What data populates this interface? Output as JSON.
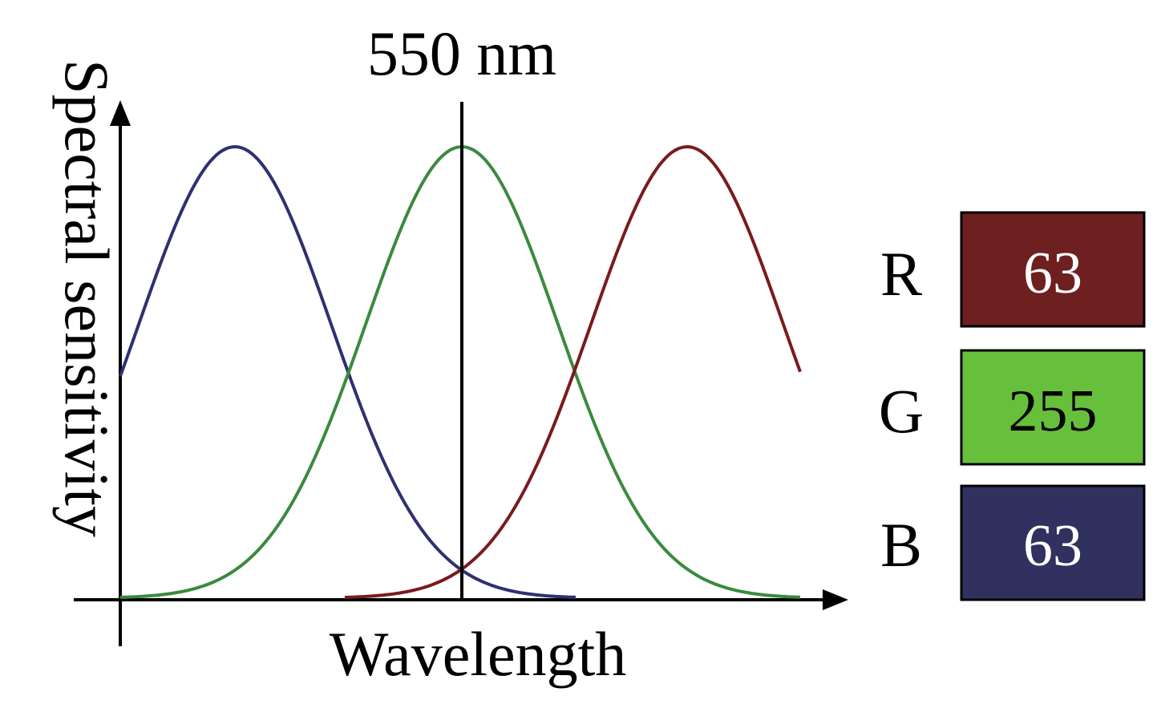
{
  "diagram": {
    "y_axis_label": "Spectral sensitivity",
    "x_axis_label": "Wavelength",
    "marker_label": "550 nm"
  },
  "curves": [
    {
      "id": "blue",
      "color": "#2f3070"
    },
    {
      "id": "green",
      "color": "#3b8a3f"
    },
    {
      "id": "red",
      "color": "#7a1a1f"
    }
  ],
  "channels": [
    {
      "letter": "R",
      "value": "63",
      "fill": "#6e1f20",
      "text_color": "#ffffff"
    },
    {
      "letter": "G",
      "value": "255",
      "fill": "#66c03c",
      "text_color": "#000000"
    },
    {
      "letter": "B",
      "value": "63",
      "fill": "#313160",
      "text_color": "#ffffff"
    }
  ]
}
